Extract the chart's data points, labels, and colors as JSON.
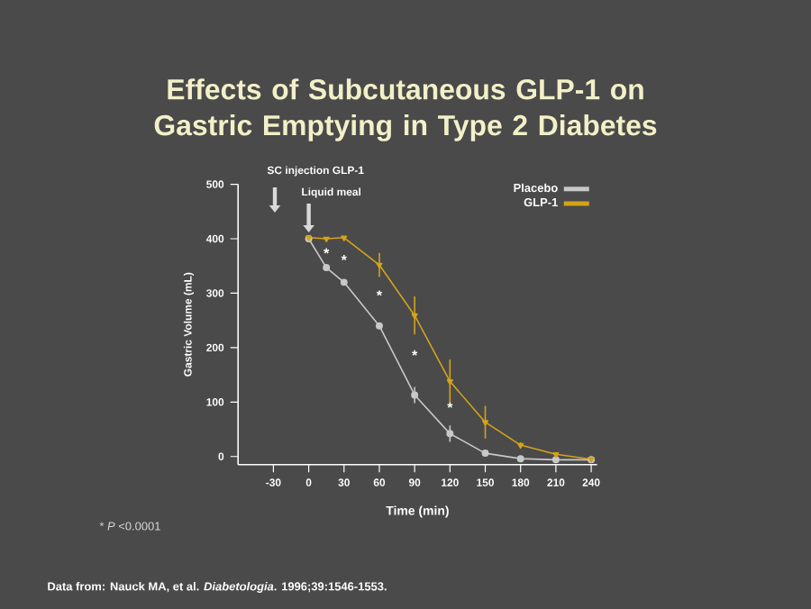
{
  "chart_data": {
    "type": "line",
    "title": "Effects of Subcutaneous GLP-1 on Gastric Emptying in Type 2 Diabetes",
    "xlabel": "Time (min)",
    "ylabel": "Gastric Volume (mL)",
    "x": [
      0,
      15,
      30,
      60,
      90,
      120,
      150,
      180,
      210,
      240
    ],
    "series": [
      {
        "name": "Placebo",
        "color": "#c8c8c8",
        "marker": "circle",
        "values": [
          400,
          347,
          320,
          240,
          113,
          42,
          6,
          -4,
          -6,
          -6
        ],
        "errors": [
          null,
          null,
          null,
          null,
          15,
          15,
          null,
          null,
          null,
          null
        ]
      },
      {
        "name": "GLP-1",
        "color": "#d4a31a",
        "marker": "triangle",
        "values": [
          402,
          400,
          402,
          352,
          259,
          138,
          63,
          21,
          4,
          -5
        ],
        "errors": [
          null,
          null,
          null,
          22,
          35,
          40,
          30,
          5,
          null,
          null
        ]
      }
    ],
    "xlim": [
      -60,
      245
    ],
    "ylim": [
      -15,
      500
    ],
    "xticks": [
      -30,
      0,
      30,
      60,
      90,
      120,
      150,
      180,
      210,
      240
    ],
    "yticks": [
      0,
      100,
      200,
      300,
      400,
      500
    ],
    "grid": false,
    "legend": "top right",
    "annotations": [
      "SC injection GLP-1",
      "Liquid meal",
      "*",
      "*",
      "*",
      "*",
      "*",
      "* *P* <0.0001",
      "Data from: Nauck MA, et al. *Diabetologia*. 1996;39:1546-1553."
    ]
  }
}
